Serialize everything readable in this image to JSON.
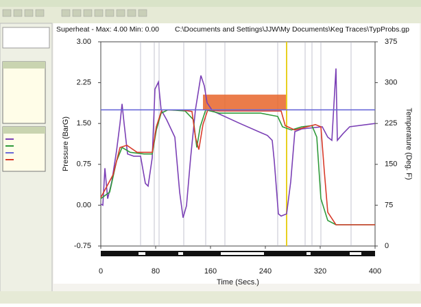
{
  "chart_data": {
    "type": "line",
    "title": "Superheat - Max: 4.00  Min: 0.00",
    "subtitle": "C:\\Documents and Settings\\JJW\\My Documents\\Keg Traces\\TypProbs.gp",
    "x_label": "Time (Secs.)",
    "y_label": "Pressure (BarG)",
    "y2_label": "Temperature (Deg. F)",
    "xlim": [
      0,
      400
    ],
    "xticks": [
      0,
      80,
      160,
      240,
      320,
      400
    ],
    "ylim": [
      -0.75,
      3.0
    ],
    "yticks": [
      -0.75,
      {
        "value": 0,
        "label": "0.00"
      },
      0.75,
      {
        "value": 1.5,
        "label": "1.50"
      },
      2.25,
      {
        "value": 3.0,
        "label": "3.00"
      }
    ],
    "y2lim": [
      0,
      375
    ],
    "y2ticks": [
      0,
      75,
      150,
      225,
      300,
      375
    ],
    "highlight": {
      "x": [
        149,
        271
      ],
      "y": [
        1.75,
        2.03
      ],
      "color": "#e8652a"
    },
    "marker_x": 271,
    "series": [
      {
        "color": "#7a3fb5",
        "axis": "y",
        "x": [
          0,
          3,
          6,
          10,
          16,
          23,
          28,
          31,
          34,
          39,
          48,
          58,
          65,
          69,
          75,
          79,
          84,
          88,
          96,
          108,
          115,
          120,
          125,
          131,
          138,
          146,
          151,
          155,
          163,
          203,
          243,
          250,
          253,
          259,
          263,
          271,
          277,
          283,
          293,
          323,
          331,
          337,
          343,
          345,
          353,
          363,
          400
        ],
        "values": [
          0.02,
          0.0,
          0.68,
          0.12,
          0.43,
          1.0,
          1.5,
          1.86,
          1.5,
          0.94,
          0.9,
          0.9,
          0.4,
          0.35,
          0.87,
          2.13,
          2.26,
          1.75,
          1.57,
          1.25,
          0.24,
          -0.23,
          -0.01,
          0.87,
          1.75,
          2.38,
          2.19,
          1.88,
          1.73,
          1.5,
          1.28,
          1.19,
          0.81,
          -0.16,
          -0.2,
          -0.16,
          0.43,
          1.35,
          1.4,
          1.44,
          1.25,
          1.19,
          2.51,
          1.19,
          1.31,
          1.44,
          1.5
        ]
      },
      {
        "color": "#2f9a3a",
        "axis": "y2",
        "x": [
          0,
          13,
          23,
          31,
          43,
          63,
          75,
          81,
          88,
          98,
          123,
          135,
          140,
          145,
          153,
          173,
          233,
          258,
          265,
          278,
          293,
          308,
          315,
          321,
          331,
          343,
          400
        ],
        "values": [
          87,
          99,
          156,
          181,
          172,
          169,
          169,
          213,
          244,
          250,
          248,
          232,
          181,
          219,
          250,
          244,
          244,
          238,
          219,
          213,
          219,
          221,
          200,
          87,
          47,
          39,
          39
        ]
      },
      {
        "color": "#d83a2a",
        "axis": "y2",
        "x": [
          0,
          18,
          28,
          38,
          53,
          75,
          81,
          89,
          118,
          133,
          138,
          143,
          149,
          156,
          173,
          263,
          269,
          283,
          313,
          321,
          326,
          331,
          343,
          400
        ],
        "values": [
          89,
          131,
          181,
          185,
          172,
          172,
          219,
          250,
          250,
          247,
          200,
          177,
          223,
          250,
          248,
          248,
          221,
          213,
          223,
          219,
          137,
          62,
          39,
          39
        ]
      },
      {
        "color": "#6a6ad8",
        "axis": "y",
        "x": [
          0,
          400
        ],
        "values": [
          1.75,
          1.75
        ]
      }
    ]
  }
}
